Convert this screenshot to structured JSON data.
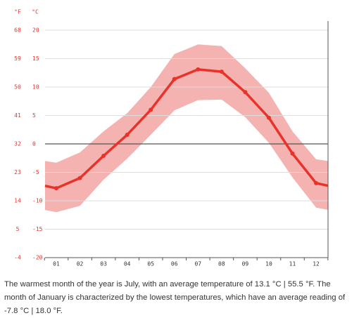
{
  "chart_data": {
    "type": "line",
    "y_label": "°C",
    "y2_label": "°F",
    "categories": [
      "01",
      "02",
      "03",
      "04",
      "05",
      "06",
      "07",
      "08",
      "09",
      "10",
      "11",
      "12"
    ],
    "values": [
      -7.8,
      -6.0,
      -2.1,
      1.6,
      6.0,
      11.4,
      13.1,
      12.7,
      9.1,
      4.6,
      -1.7,
      -6.9
    ],
    "color": "#e8322a",
    "range": {
      "low": [
        -12.0,
        -10.9,
        -6.3,
        -2.6,
        1.6,
        5.9,
        7.7,
        7.8,
        4.7,
        0.2,
        -5.9,
        -11.2
      ],
      "high": [
        -3.3,
        -1.5,
        2.2,
        5.4,
        10.0,
        15.8,
        17.5,
        17.2,
        13.3,
        9.0,
        2.2,
        -2.7
      ],
      "color": "#f4b3b0"
    },
    "ylim": [
      -20,
      20
    ],
    "yticks": [
      -20,
      -15,
      -10,
      -5,
      0,
      5,
      10,
      15,
      20
    ],
    "y2lim": [
      -4,
      68
    ],
    "y2ticks": [
      -4,
      5,
      14,
      23,
      32,
      41,
      50,
      59,
      68
    ],
    "grid": true,
    "tick_color": "#e8322a"
  },
  "text": "The warmest month of the year is July, with an average temperature of 13.1 °C | 55.5 °F. The month of January is characterized by the lowest temperatures, which have an average reading of -7.8 °C | 18.0 °F."
}
